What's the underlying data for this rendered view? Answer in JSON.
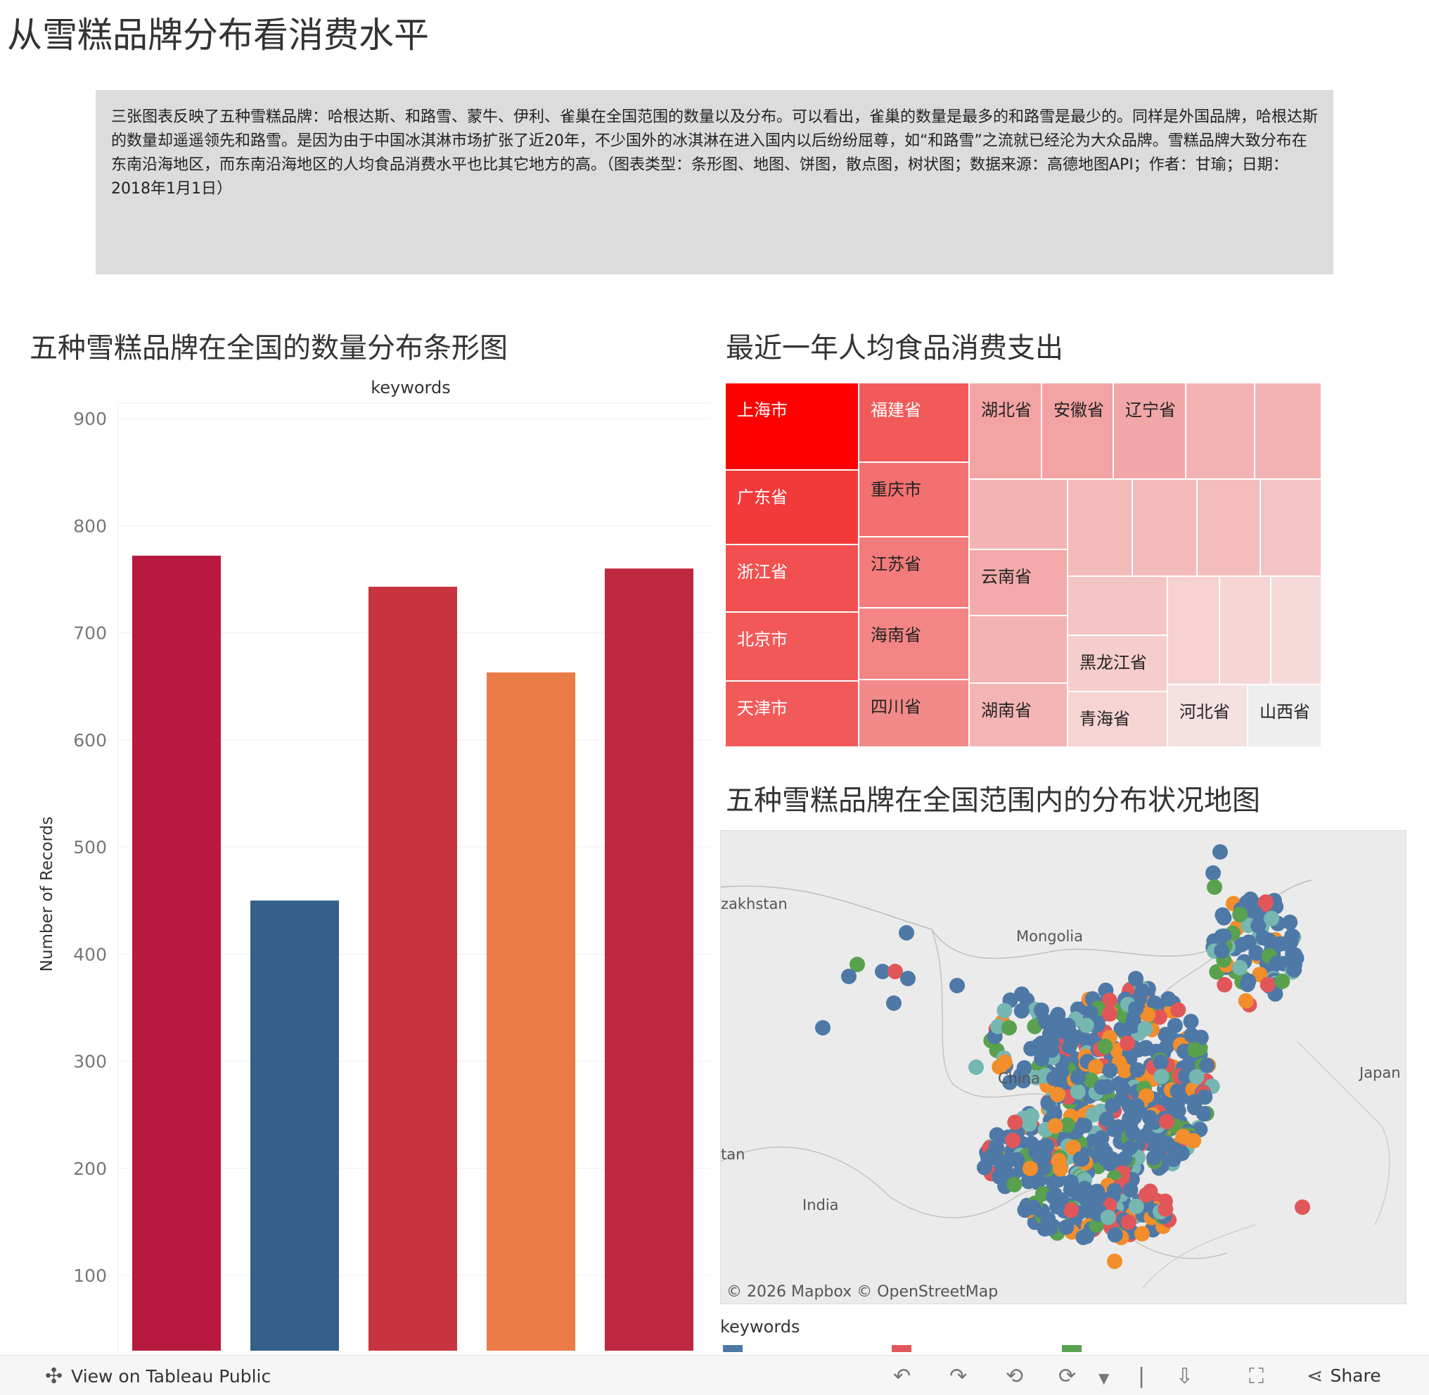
{
  "page": {
    "title": "从雪糕品牌分布看消费水平",
    "description": "三张图表反映了五种雪糕品牌：哈根达斯、和路雪、蒙牛、伊利、雀巢在全国范围的数量以及分布。可以看出，雀巢的数量是最多的和路雪是最少的。同样是外国品牌，哈根达斯的数量却遥遥领先和路雪。是因为由于中国冰淇淋市场扩张了近20年，不少国外的冰淇淋在进入国内以后纷纷屈尊，如“和路雪”之流就已经沦为大众品牌。雪糕品牌大致分布在东南沿海地区，而东南沿海地区的人均食品消费水平也比其它地方的高。（图表类型：条形图、地图、饼图，散点图，树状图；数据来源：高德地图API；作者：甘瑜；日期：2018年1月1日）"
  },
  "bar_section": {
    "title": "五种雪糕品牌在全国的数量分布条形图"
  },
  "treemap_section": {
    "title": "最近一年人均食品消费支出",
    "cells": [
      "上海市",
      "福建省",
      "湖北省",
      "安徽省",
      "辽宁省",
      "广东省",
      "重庆市",
      "浙江省",
      "江苏省",
      "云南省",
      "北京市",
      "海南省",
      "黑龙江省",
      "天津市",
      "四川省",
      "湖南省",
      "青海省",
      "河北省",
      "山西省"
    ]
  },
  "map_section": {
    "title": "五种雪糕品牌在全国范围内的分布状况地图",
    "labels": {
      "kazakhstan": "zakhstan",
      "mongolia": "Mongolia",
      "china": "China",
      "japan": "Japan",
      "india": "India",
      "pakistan": "tan"
    },
    "credit": "© 2026 Mapbox  © OpenStreetMap",
    "legend_title": "keywords",
    "legend_colors": [
      "#4e79a7",
      "#e15759",
      "#59a14f"
    ]
  },
  "footer": {
    "view_link": "View on Tableau Public",
    "share_label": "Share",
    "icons": [
      "tableau-logo-icon",
      "undo-icon",
      "redo-icon",
      "revert-icon",
      "refresh-icon",
      "dropdown-icon",
      "download-icon",
      "fullscreen-icon",
      "share-icon"
    ]
  },
  "chart_data": {
    "type": "bar",
    "title": "keywords",
    "xlabel": "",
    "ylabel": "Number of Records",
    "ylim": [
      0,
      900
    ],
    "yticks": [
      100,
      200,
      300,
      400,
      500,
      600,
      700,
      800,
      900
    ],
    "grid": true,
    "values": [
      772,
      450,
      743,
      663,
      760
    ],
    "colors": [
      "#b8193f",
      "#346089",
      "#c7343f",
      "#ec7c47",
      "#bf2840"
    ]
  }
}
